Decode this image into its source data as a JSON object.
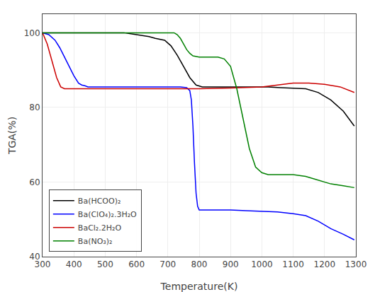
{
  "chart_data": {
    "type": "line",
    "xlabel": "Temperature(K)",
    "ylabel": "TGA(%)",
    "xlim": [
      300,
      1300
    ],
    "ylim": [
      40,
      105
    ],
    "xticks": [
      300,
      400,
      500,
      600,
      700,
      800,
      900,
      1000,
      1100,
      1200,
      1300
    ],
    "yticks": [
      40,
      60,
      80,
      100
    ],
    "grid": true,
    "legend": "lower left",
    "series": [
      {
        "name": "Ba(HCOO)₂",
        "color": "#000000",
        "x": [
          300,
          330,
          360,
          400,
          440,
          480,
          520,
          560,
          600,
          640,
          660,
          690,
          710,
          730,
          750,
          770,
          790,
          810,
          830,
          860,
          900,
          940,
          980,
          1020,
          1060,
          1100,
          1140,
          1180,
          1220,
          1260,
          1295
        ],
        "values": [
          100,
          100,
          100,
          100,
          100,
          100,
          100,
          100,
          99.5,
          99.0,
          98.5,
          98.0,
          96.5,
          94.0,
          91.0,
          88.0,
          86.0,
          85.5,
          85.5,
          85.5,
          85.5,
          85.5,
          85.5,
          85.5,
          85.3,
          85.2,
          85.0,
          84.0,
          82.0,
          79.0,
          75.0
        ]
      },
      {
        "name": "Ba(ClO₄)₂.3H₂O",
        "color": "#0000ff",
        "x": [
          300,
          320,
          340,
          355,
          370,
          385,
          400,
          415,
          425,
          435,
          445,
          460,
          480,
          500,
          550,
          600,
          650,
          700,
          740,
          760,
          770,
          775,
          780,
          785,
          790,
          795,
          800,
          820,
          860,
          900,
          950,
          1000,
          1050,
          1100,
          1140,
          1180,
          1220,
          1260,
          1295
        ],
        "values": [
          100,
          99.5,
          98.0,
          96.0,
          93.5,
          91.0,
          88.5,
          86.5,
          86.0,
          85.8,
          85.5,
          85.5,
          85.5,
          85.5,
          85.5,
          85.5,
          85.5,
          85.5,
          85.5,
          85.3,
          84.5,
          82.0,
          75.0,
          65.0,
          57.0,
          53.5,
          52.5,
          52.5,
          52.5,
          52.5,
          52.3,
          52.2,
          52.0,
          51.5,
          51.0,
          49.5,
          47.5,
          46.0,
          44.5
        ]
      },
      {
        "name": "BaCl₂.2H₂O",
        "color": "#cc0000",
        "x": [
          300,
          315,
          330,
          345,
          358,
          370,
          385,
          400,
          420,
          440,
          460,
          500,
          600,
          700,
          800,
          900,
          1000,
          1050,
          1100,
          1150,
          1200,
          1250,
          1295
        ],
        "values": [
          100,
          97.0,
          92.5,
          88.0,
          85.5,
          85.0,
          85.0,
          85.0,
          85.0,
          85.0,
          85.0,
          85.0,
          85.0,
          85.0,
          85.0,
          85.2,
          85.5,
          86.0,
          86.5,
          86.5,
          86.2,
          85.5,
          84.0
        ]
      },
      {
        "name": "Ba(NO₃)₂",
        "color": "#008000",
        "x": [
          300,
          350,
          400,
          450,
          500,
          550,
          600,
          620,
          640,
          660,
          680,
          700,
          710,
          720,
          730,
          740,
          750,
          760,
          770,
          780,
          800,
          820,
          840,
          860,
          880,
          900,
          920,
          940,
          960,
          980,
          1000,
          1020,
          1050,
          1080,
          1100,
          1140,
          1180,
          1220,
          1260,
          1295
        ],
        "values": [
          100,
          100,
          100,
          100,
          100,
          100,
          100,
          100,
          100,
          100,
          100,
          100,
          100,
          100,
          99.5,
          98.5,
          97.0,
          95.5,
          94.5,
          93.8,
          93.5,
          93.5,
          93.5,
          93.5,
          93.0,
          91.0,
          85.0,
          77.0,
          69.0,
          64.0,
          62.5,
          62.0,
          62.0,
          62.0,
          62.0,
          61.5,
          60.5,
          59.5,
          59.0,
          58.5
        ]
      }
    ]
  }
}
